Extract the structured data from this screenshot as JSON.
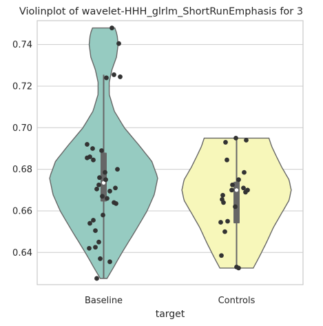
{
  "chart_data": {
    "type": "violin",
    "title": "Violinplot of wavelet-HHH_glrlm_ShortRunEmphasis for 3",
    "xlabel": "target",
    "ylabel": "",
    "ylim": [
      0.6245,
      0.7515
    ],
    "yticks": [
      0.64,
      0.66,
      0.68,
      0.7,
      0.72,
      0.74
    ],
    "ytick_labels": [
      "0.64",
      "0.66",
      "0.68",
      "0.70",
      "0.72",
      "0.74"
    ],
    "grid": true,
    "legend": "none",
    "categories": [
      "Baseline",
      "Controls"
    ],
    "colors": {
      "Baseline": "#96cbc1",
      "Controls": "#f7f7ba",
      "box": "#666666",
      "points": "#333333"
    },
    "series": [
      {
        "category": "Baseline",
        "range": [
          0.6275,
          0.748
        ],
        "box": {
          "q1": 0.6645,
          "median": 0.6735,
          "q3": 0.688,
          "whisker_low": 0.6275,
          "whisker_high": 0.7255
        },
        "density": [
          [
            0.6275,
            0.06
          ],
          [
            0.632,
            0.16
          ],
          [
            0.64,
            0.33
          ],
          [
            0.65,
            0.56
          ],
          [
            0.66,
            0.78
          ],
          [
            0.668,
            0.91
          ],
          [
            0.676,
            0.97
          ],
          [
            0.684,
            0.86
          ],
          [
            0.692,
            0.62
          ],
          [
            0.7,
            0.37
          ],
          [
            0.708,
            0.19
          ],
          [
            0.716,
            0.1
          ],
          [
            0.722,
            0.1
          ],
          [
            0.728,
            0.15
          ],
          [
            0.734,
            0.23
          ],
          [
            0.74,
            0.26
          ],
          [
            0.745,
            0.24
          ],
          [
            0.748,
            0.2
          ]
        ],
        "points": [
          [
            0.748,
            0.12
          ],
          [
            0.7405,
            0.22
          ],
          [
            0.7255,
            0.15
          ],
          [
            0.7245,
            0.24
          ],
          [
            0.724,
            0.04
          ],
          [
            0.692,
            -0.24
          ],
          [
            0.69,
            -0.16
          ],
          [
            0.689,
            -0.03
          ],
          [
            0.686,
            -0.2
          ],
          [
            0.6855,
            -0.24
          ],
          [
            0.6845,
            -0.15
          ],
          [
            0.68,
            0.2
          ],
          [
            0.6785,
            0.02
          ],
          [
            0.676,
            -0.06
          ],
          [
            0.675,
            0.03
          ],
          [
            0.6725,
            -0.07
          ],
          [
            0.671,
            0.17
          ],
          [
            0.6705,
            -0.1
          ],
          [
            0.6695,
            0.09
          ],
          [
            0.667,
            -0.02
          ],
          [
            0.666,
            0.05
          ],
          [
            0.664,
            0.15
          ],
          [
            0.6635,
            0.18
          ],
          [
            0.658,
            -0.01
          ],
          [
            0.6555,
            -0.15
          ],
          [
            0.654,
            -0.2
          ],
          [
            0.6505,
            -0.12
          ],
          [
            0.645,
            -0.07
          ],
          [
            0.642,
            -0.21
          ],
          [
            0.6425,
            -0.12
          ],
          [
            0.637,
            -0.05
          ],
          [
            0.6355,
            0.09
          ],
          [
            0.6275,
            -0.1
          ]
        ]
      },
      {
        "category": "Controls",
        "range": [
          0.6325,
          0.695
        ],
        "box": {
          "q1": 0.654,
          "median": 0.67,
          "q3": 0.674,
          "whisker_low": 0.6325,
          "whisker_high": 0.695
        },
        "density": [
          [
            0.6325,
            0.3
          ],
          [
            0.638,
            0.41
          ],
          [
            0.645,
            0.54
          ],
          [
            0.652,
            0.66
          ],
          [
            0.659,
            0.81
          ],
          [
            0.665,
            0.94
          ],
          [
            0.67,
            0.98
          ],
          [
            0.675,
            0.94
          ],
          [
            0.681,
            0.81
          ],
          [
            0.687,
            0.7
          ],
          [
            0.691,
            0.63
          ],
          [
            0.695,
            0.58
          ]
        ],
        "points": [
          [
            0.695,
            -0.01
          ],
          [
            0.694,
            0.14
          ],
          [
            0.693,
            -0.16
          ],
          [
            0.6845,
            -0.14
          ],
          [
            0.6785,
            0.11
          ],
          [
            0.675,
            0.03
          ],
          [
            0.6725,
            -0.06
          ],
          [
            0.671,
            0.1
          ],
          [
            0.67,
            0.16
          ],
          [
            0.67,
            -0.07
          ],
          [
            0.669,
            0.13
          ],
          [
            0.6675,
            -0.2
          ],
          [
            0.6655,
            -0.21
          ],
          [
            0.664,
            -0.19
          ],
          [
            0.662,
            -0.02
          ],
          [
            0.655,
            -0.13
          ],
          [
            0.6545,
            -0.23
          ],
          [
            0.65,
            -0.17
          ],
          [
            0.6385,
            -0.22
          ],
          [
            0.633,
            0.0
          ],
          [
            0.6325,
            0.03
          ]
        ]
      }
    ]
  }
}
